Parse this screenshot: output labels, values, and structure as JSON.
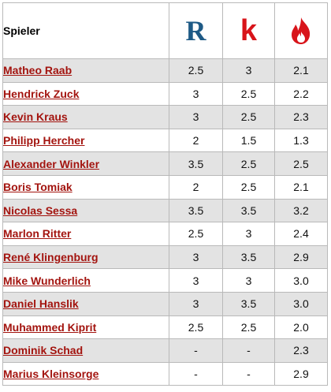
{
  "table": {
    "header": {
      "player": "Spieler",
      "icons": [
        "r-logo-icon",
        "k-logo-icon",
        "flame-icon"
      ],
      "r_letter": "R",
      "k_letter": "k"
    },
    "colors": {
      "link": "#a3140f",
      "r_logo": "#1e5a86",
      "k_logo": "#d8141a",
      "flame": "#d8141a",
      "row_shade": "#e3e3e3"
    },
    "rows": [
      {
        "player": "Matheo Raab",
        "r": "2.5",
        "k": "3",
        "h": "2.1"
      },
      {
        "player": "Hendrick Zuck",
        "r": "3",
        "k": "2.5",
        "h": "2.2"
      },
      {
        "player": "Kevin Kraus",
        "r": "3",
        "k": "2.5",
        "h": "2.3"
      },
      {
        "player": "Philipp Hercher",
        "r": "2",
        "k": "1.5",
        "h": "1.3"
      },
      {
        "player": "Alexander Winkler",
        "r": "3.5",
        "k": "2.5",
        "h": "2.5"
      },
      {
        "player": "Boris Tomiak",
        "r": "2",
        "k": "2.5",
        "h": "2.1"
      },
      {
        "player": "Nicolas Sessa",
        "r": "3.5",
        "k": "3.5",
        "h": "3.2"
      },
      {
        "player": "Marlon Ritter",
        "r": "2.5",
        "k": "3",
        "h": "2.4"
      },
      {
        "player": "René Klingenburg",
        "r": "3",
        "k": "3.5",
        "h": "2.9"
      },
      {
        "player": "Mike Wunderlich",
        "r": "3",
        "k": "3",
        "h": "3.0"
      },
      {
        "player": "Daniel Hanslik",
        "r": "3",
        "k": "3.5",
        "h": "3.0"
      },
      {
        "player": "Muhammed Kiprit",
        "r": "2.5",
        "k": "2.5",
        "h": "2.0"
      },
      {
        "player": "Dominik Schad",
        "r": "-",
        "k": "-",
        "h": "2.3"
      },
      {
        "player": "Marius Kleinsorge",
        "r": "-",
        "k": "-",
        "h": "2.9"
      }
    ]
  }
}
